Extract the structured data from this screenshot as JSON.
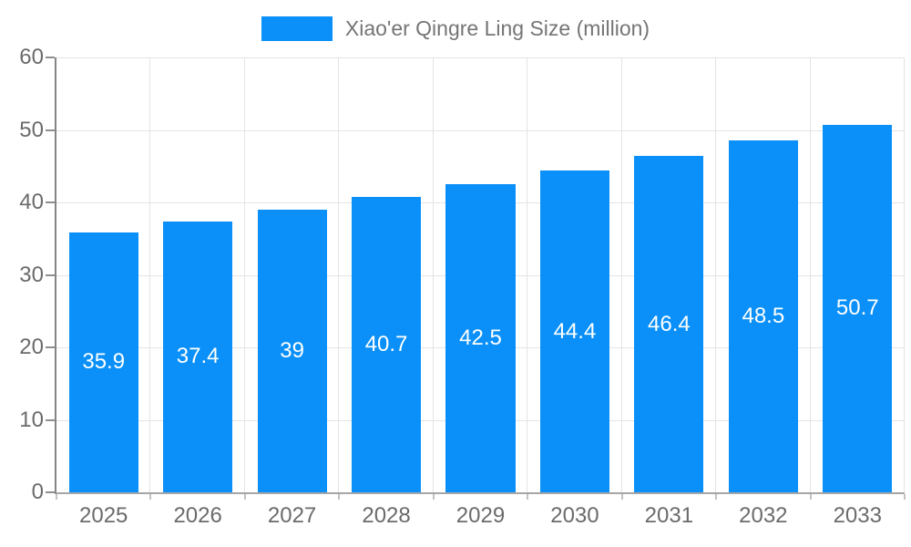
{
  "legend": {
    "label": "Xiao'er Qingre Ling Size (million)",
    "position": "top-center"
  },
  "chart_data": {
    "type": "bar",
    "title": "Xiao'er Qingre Ling Size (million)",
    "categories": [
      "2025",
      "2026",
      "2027",
      "2028",
      "2029",
      "2030",
      "2031",
      "2032",
      "2033"
    ],
    "values": [
      35.9,
      37.4,
      39,
      40.7,
      42.5,
      44.4,
      46.4,
      48.5,
      50.7
    ],
    "xlabel": "",
    "ylabel": "",
    "ylim": [
      0,
      60
    ],
    "yticks": [
      0,
      10,
      20,
      30,
      40,
      50,
      60
    ],
    "grid": true,
    "legend_position": "top-center",
    "value_label_position": "inside-center",
    "colors": {
      "bar": "#0A90F8",
      "bar_value_label": "#ffffff",
      "axis_label": "#6b6b6b",
      "legend_text": "#757575"
    }
  }
}
